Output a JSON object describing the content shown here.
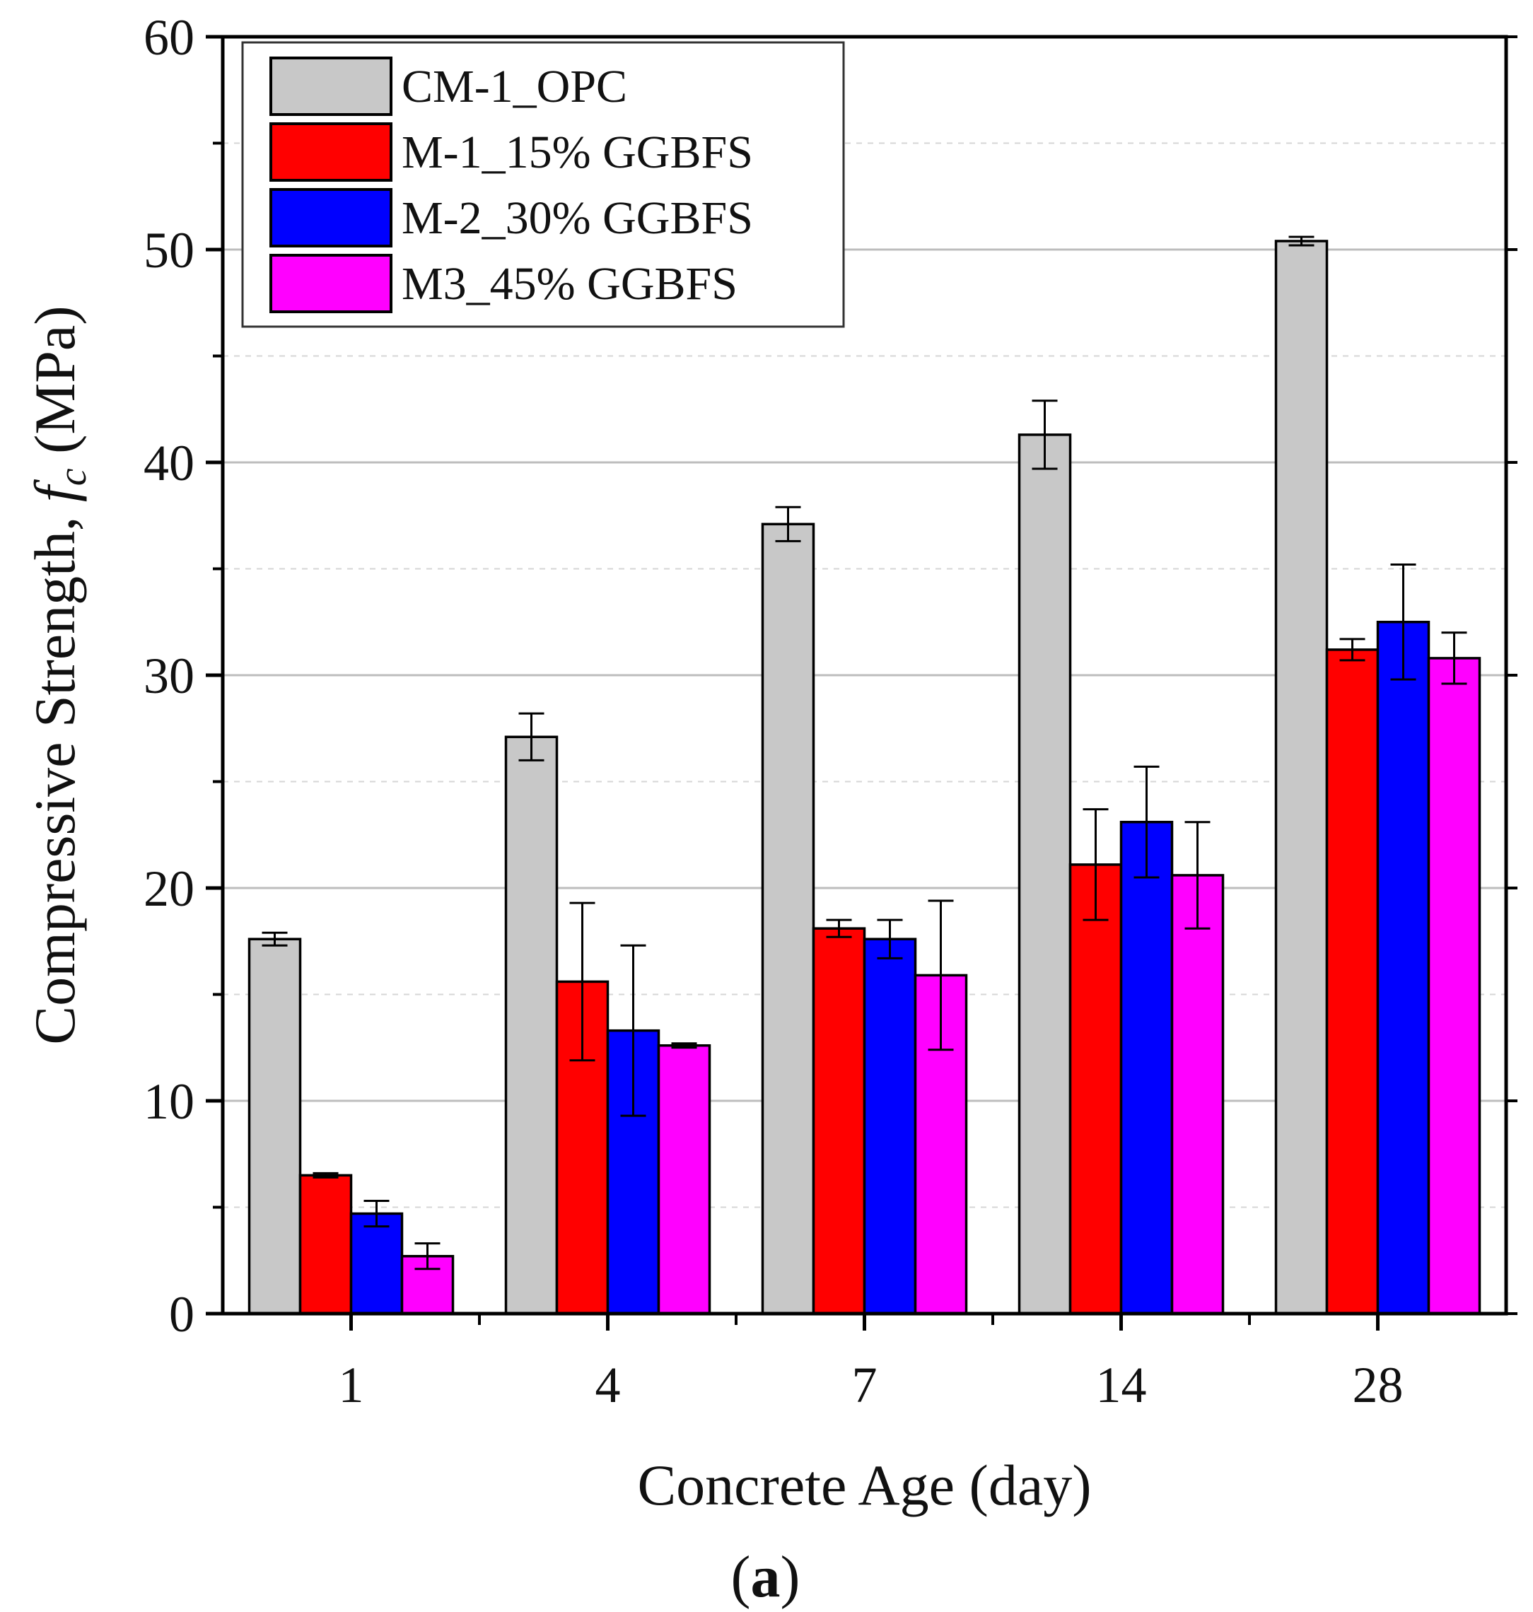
{
  "chart_data": {
    "type": "bar",
    "title": "",
    "xlabel": "Concrete Age (day)",
    "ylabel_main": "Compressive Strength, ",
    "ylabel_var": "f",
    "ylabel_sub": "c",
    "ylabel_unit": " (MPa)",
    "caption_open": "(",
    "caption_letter": "a",
    "caption_close": ")",
    "categories": [
      "1",
      "4",
      "7",
      "14",
      "28"
    ],
    "ylim": [
      0,
      60
    ],
    "yticks": [
      "0",
      "10",
      "20",
      "30",
      "40",
      "50",
      "60"
    ],
    "legend_position": "top-left",
    "grid": true,
    "series": [
      {
        "name": "CM-1_OPC",
        "color": "#c8c8c8",
        "values": [
          17.6,
          27.1,
          37.1,
          41.3,
          50.4
        ],
        "errors": [
          0.3,
          1.1,
          0.8,
          1.6,
          0.2
        ]
      },
      {
        "name": "M-1_15% GGBFS",
        "color": "#ff0000",
        "values": [
          6.5,
          15.6,
          18.1,
          21.1,
          31.2
        ],
        "errors": [
          0.1,
          3.7,
          0.4,
          2.6,
          0.5
        ]
      },
      {
        "name": "M-2_30% GGBFS",
        "color": "#0000ff",
        "values": [
          4.7,
          13.3,
          17.6,
          23.1,
          32.5
        ],
        "errors": [
          0.6,
          4.0,
          0.9,
          2.6,
          2.7
        ]
      },
      {
        "name": "M3_45% GGBFS",
        "color": "#ff00ff",
        "values": [
          2.7,
          12.6,
          15.9,
          20.6,
          30.8
        ],
        "errors": [
          0.6,
          0.1,
          3.5,
          2.5,
          1.2
        ]
      }
    ]
  }
}
